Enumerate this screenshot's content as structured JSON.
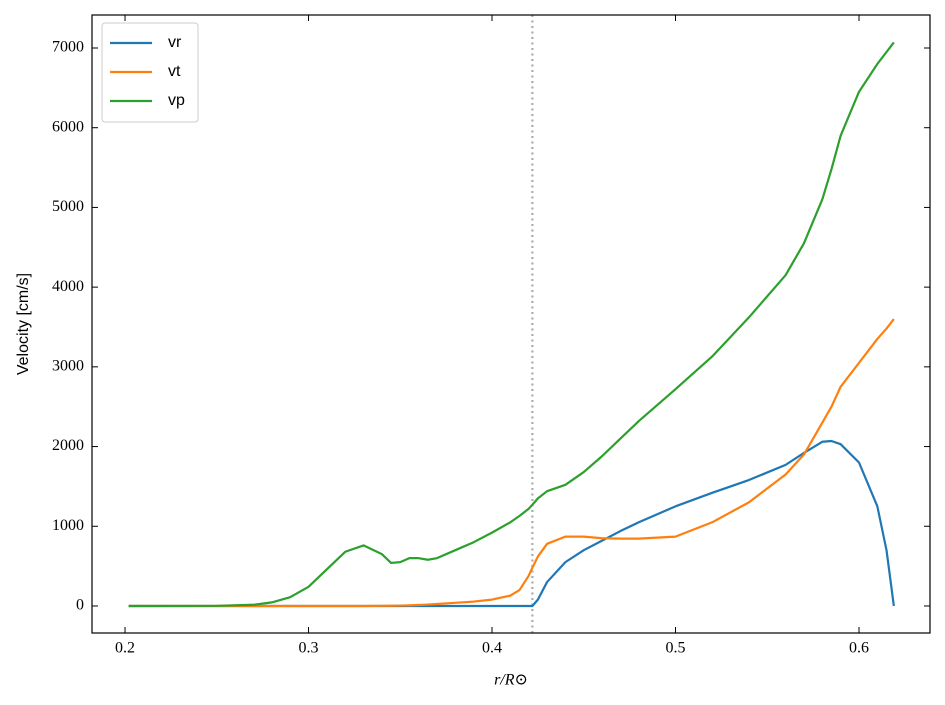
{
  "chart_data": {
    "type": "line",
    "xlabel": "r/R⊙",
    "ylabel": "Velocity [cm/s]",
    "x": [
      0.202,
      0.25,
      0.27,
      0.28,
      0.29,
      0.3,
      0.31,
      0.32,
      0.33,
      0.34,
      0.345,
      0.35,
      0.355,
      0.36,
      0.365,
      0.37,
      0.38,
      0.39,
      0.4,
      0.41,
      0.415,
      0.42,
      0.422,
      0.425,
      0.43,
      0.44,
      0.45,
      0.46,
      0.47,
      0.48,
      0.5,
      0.52,
      0.54,
      0.56,
      0.57,
      0.58,
      0.585,
      0.59,
      0.6,
      0.61,
      0.615,
      0.619
    ],
    "series": [
      {
        "name": "vr",
        "color": "#1f77b4",
        "values": [
          0,
          0,
          0,
          0,
          0,
          0,
          0,
          0,
          0,
          0,
          0,
          0,
          0,
          0,
          0,
          0,
          0,
          0,
          0,
          0,
          0,
          0,
          0,
          80,
          300,
          550,
          700,
          820,
          940,
          1050,
          1250,
          1420,
          1580,
          1770,
          1920,
          2060,
          2070,
          2030,
          1800,
          1250,
          700,
          0
        ]
      },
      {
        "name": "vt",
        "color": "#ff7f0e",
        "values": [
          0,
          0,
          0,
          0,
          0,
          0,
          0,
          0,
          0,
          2,
          3,
          5,
          8,
          12,
          18,
          25,
          40,
          55,
          80,
          130,
          200,
          380,
          480,
          620,
          780,
          870,
          870,
          850,
          845,
          845,
          870,
          1050,
          1300,
          1650,
          1900,
          2300,
          2500,
          2750,
          3050,
          3350,
          3480,
          3600
        ]
      },
      {
        "name": "vp",
        "color": "#2ca02c",
        "values": [
          0,
          2,
          15,
          45,
          110,
          240,
          460,
          680,
          760,
          650,
          540,
          550,
          600,
          600,
          580,
          600,
          700,
          800,
          920,
          1050,
          1130,
          1220,
          1270,
          1350,
          1440,
          1520,
          1680,
          1880,
          2100,
          2320,
          2720,
          3130,
          3620,
          4150,
          4550,
          5100,
          5480,
          5900,
          6450,
          6800,
          6950,
          7070
        ]
      }
    ],
    "xlim": [
      0.182,
      0.6387
    ],
    "ylim": [
      -339,
      7414
    ],
    "xticks": [
      0.2,
      0.3,
      0.4,
      0.5,
      0.6
    ],
    "yticks": [
      0,
      1000,
      2000,
      3000,
      4000,
      5000,
      6000,
      7000
    ],
    "vline": 0.422,
    "vline_color": "#aaaaaa",
    "legend": "upper left",
    "grid": false
  }
}
